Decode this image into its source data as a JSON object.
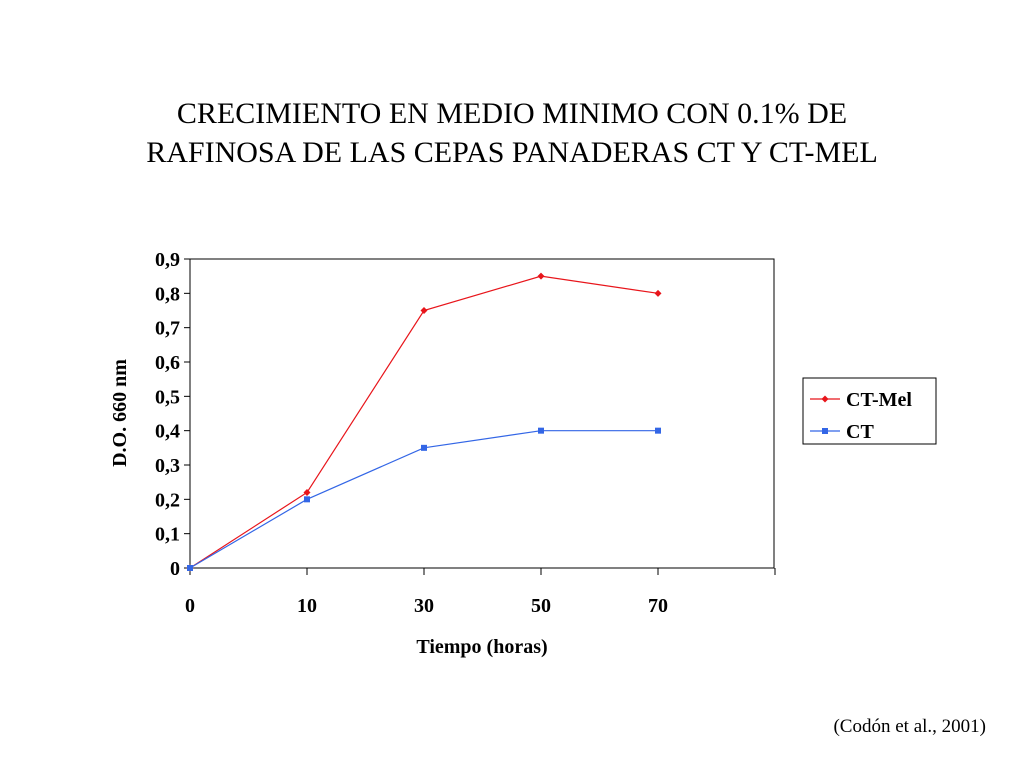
{
  "slide": {
    "title_line1": "CRECIMIENTO EN MEDIO MINIMO CON 0.1% DE",
    "title_line2": "RAFINOSA DE LAS CEPAS PANADERAS CT Y CT-MEL",
    "citation": "(Codón et al., 2001)"
  },
  "chart_data": {
    "type": "line",
    "title": "",
    "xlabel": "Tiempo (horas)",
    "ylabel": "D.O. 660 nm",
    "categories": [
      "0",
      "10",
      "30",
      "50",
      "70"
    ],
    "yticks": [
      "0",
      "0,1",
      "0,2",
      "0,3",
      "0,4",
      "0,5",
      "0,6",
      "0,7",
      "0,8",
      "0,9"
    ],
    "ylim": [
      0,
      0.9
    ],
    "grid": false,
    "legend_position": "right",
    "series": [
      {
        "name": "CT-Mel",
        "color": "#e8151b",
        "marker": "diamond",
        "values": [
          0,
          0.22,
          0.75,
          0.85,
          0.8
        ]
      },
      {
        "name": "CT",
        "color": "#3366e6",
        "marker": "square",
        "values": [
          0,
          0.2,
          0.35,
          0.4,
          0.4
        ]
      }
    ]
  }
}
